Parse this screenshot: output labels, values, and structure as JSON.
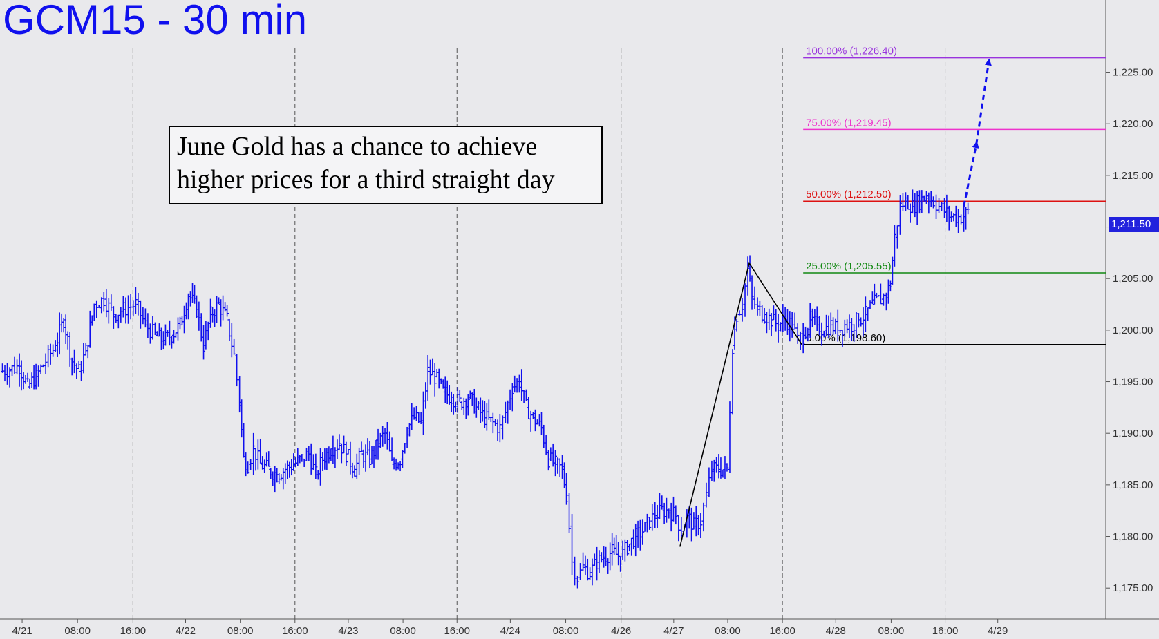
{
  "chart_title": "GCM15 - 30 min",
  "annotation": {
    "line1": "June Gold has a chance to achieve",
    "line2": "higher prices for a third straight day"
  },
  "last_price_label": "1,211.50",
  "colors": {
    "price_bars": "#1010ee",
    "fib_100": "#9933dd",
    "fib_75": "#ee33cc",
    "fib_50": "#dd1111",
    "fib_25": "#118811",
    "fib_0": "#000000",
    "projection": "#1010ee"
  },
  "chart_data": {
    "type": "ohlc",
    "title": "GCM15 - 30 min",
    "y_axis": {
      "side": "right",
      "range": [
        1172,
        1232
      ],
      "ticks": [
        1175,
        1180,
        1185,
        1190,
        1195,
        1200,
        1205,
        1210,
        1215,
        1220,
        1225
      ],
      "tick_labels": [
        "1,175.00",
        "1,180.00",
        "1,185.00",
        "1,190.00",
        "1,195.00",
        "1,200.00",
        "1,205.00",
        "1,210.00",
        "1,215.00",
        "1,220.00",
        "1,225.00"
      ]
    },
    "x_axis": {
      "range": [
        0,
        1597
      ],
      "ticks": [
        {
          "label": "4/21",
          "pos": 32
        },
        {
          "label": "08:00",
          "pos": 112
        },
        {
          "label": "16:00",
          "pos": 192
        },
        {
          "label": "4/22",
          "pos": 268
        },
        {
          "label": "08:00",
          "pos": 347
        },
        {
          "label": "16:00",
          "pos": 426
        },
        {
          "label": "4/23",
          "pos": 503
        },
        {
          "label": "08:00",
          "pos": 582
        },
        {
          "label": "16:00",
          "pos": 660
        },
        {
          "label": "4/24",
          "pos": 737
        },
        {
          "label": "08:00",
          "pos": 817
        },
        {
          "label": "4/26",
          "pos": 897
        },
        {
          "label": "4/27",
          "pos": 973
        },
        {
          "label": "08:00",
          "pos": 1051
        },
        {
          "label": "16:00",
          "pos": 1130
        },
        {
          "label": "4/28",
          "pos": 1207
        },
        {
          "label": "08:00",
          "pos": 1287
        },
        {
          "label": "16:00",
          "pos": 1365
        },
        {
          "label": "4/29",
          "pos": 1441
        }
      ],
      "session_dividers": [
        192,
        426,
        660,
        897,
        1130,
        1365
      ]
    },
    "price_path": [
      [
        0,
        1196.0
      ],
      [
        14,
        1196.2
      ],
      [
        28,
        1196.5
      ],
      [
        40,
        1194.5
      ],
      [
        52,
        1195.5
      ],
      [
        66,
        1197.0
      ],
      [
        80,
        1198.5
      ],
      [
        92,
        1201.0
      ],
      [
        104,
        1197.0
      ],
      [
        114,
        1196.0
      ],
      [
        124,
        1198.0
      ],
      [
        136,
        1202.5
      ],
      [
        150,
        1203.0
      ],
      [
        164,
        1201.5
      ],
      [
        178,
        1202.0
      ],
      [
        196,
        1202.5
      ],
      [
        210,
        1200.5
      ],
      [
        224,
        1199.5
      ],
      [
        236,
        1199.0
      ],
      [
        248,
        1199.5
      ],
      [
        260,
        1200.5
      ],
      [
        272,
        1203.5
      ],
      [
        284,
        1202.0
      ],
      [
        294,
        1198.5
      ],
      [
        304,
        1201.5
      ],
      [
        316,
        1202.5
      ],
      [
        328,
        1201.0
      ],
      [
        338,
        1197.5
      ],
      [
        346,
        1193.0
      ],
      [
        352,
        1187.5
      ],
      [
        358,
        1187.0
      ],
      [
        366,
        1188.5
      ],
      [
        376,
        1187.0
      ],
      [
        388,
        1186.5
      ],
      [
        400,
        1186.0
      ],
      [
        412,
        1186.5
      ],
      [
        424,
        1187.0
      ],
      [
        436,
        1187.5
      ],
      [
        446,
        1188.0
      ],
      [
        456,
        1186.0
      ],
      [
        466,
        1187.5
      ],
      [
        478,
        1188.5
      ],
      [
        490,
        1189.0
      ],
      [
        500,
        1188.0
      ],
      [
        512,
        1186.5
      ],
      [
        522,
        1188.0
      ],
      [
        534,
        1187.5
      ],
      [
        546,
        1189.0
      ],
      [
        556,
        1190.0
      ],
      [
        566,
        1187.0
      ],
      [
        578,
        1187.5
      ],
      [
        588,
        1190.5
      ],
      [
        598,
        1191.5
      ],
      [
        608,
        1191.0
      ],
      [
        618,
        1196.0
      ],
      [
        628,
        1195.5
      ],
      [
        640,
        1194.0
      ],
      [
        652,
        1193.5
      ],
      [
        664,
        1193.0
      ],
      [
        676,
        1193.5
      ],
      [
        688,
        1192.5
      ],
      [
        700,
        1191.5
      ],
      [
        712,
        1191.0
      ],
      [
        722,
        1190.5
      ],
      [
        730,
        1192.0
      ],
      [
        740,
        1194.5
      ],
      [
        750,
        1195.0
      ],
      [
        760,
        1192.5
      ],
      [
        770,
        1191.5
      ],
      [
        782,
        1190.5
      ],
      [
        792,
        1187.5
      ],
      [
        802,
        1187.0
      ],
      [
        812,
        1186.5
      ],
      [
        818,
        1184.0
      ],
      [
        822,
        1181.0
      ],
      [
        826,
        1177.5
      ],
      [
        834,
        1176.0
      ],
      [
        842,
        1177.0
      ],
      [
        852,
        1176.5
      ],
      [
        862,
        1177.5
      ],
      [
        872,
        1178.0
      ],
      [
        884,
        1178.5
      ],
      [
        896,
        1178.0
      ],
      [
        906,
        1179.0
      ],
      [
        918,
        1180.0
      ],
      [
        928,
        1180.5
      ],
      [
        938,
        1181.5
      ],
      [
        946,
        1182.0
      ],
      [
        956,
        1182.5
      ],
      [
        966,
        1182.5
      ],
      [
        976,
        1182.0
      ],
      [
        984,
        1180.5
      ],
      [
        992,
        1182.0
      ],
      [
        1002,
        1181.0
      ],
      [
        1012,
        1181.5
      ],
      [
        1020,
        1184.0
      ],
      [
        1028,
        1186.5
      ],
      [
        1038,
        1186.5
      ],
      [
        1050,
        1186.5
      ],
      [
        1058,
        1198.5
      ],
      [
        1064,
        1201.5
      ],
      [
        1072,
        1202.5
      ],
      [
        1080,
        1206.0
      ],
      [
        1086,
        1203.0
      ],
      [
        1094,
        1202.0
      ],
      [
        1104,
        1201.5
      ],
      [
        1114,
        1201.0
      ],
      [
        1124,
        1200.5
      ],
      [
        1134,
        1201.0
      ],
      [
        1144,
        1200.5
      ],
      [
        1152,
        1199.0
      ],
      [
        1160,
        1199.5
      ],
      [
        1170,
        1201.0
      ],
      [
        1180,
        1200.5
      ],
      [
        1190,
        1200.0
      ],
      [
        1200,
        1200.5
      ],
      [
        1210,
        1200.0
      ],
      [
        1220,
        1200.5
      ],
      [
        1230,
        1200.5
      ],
      [
        1240,
        1201.0
      ],
      [
        1250,
        1201.5
      ],
      [
        1260,
        1202.5
      ],
      [
        1272,
        1203.0
      ],
      [
        1280,
        1203.5
      ],
      [
        1286,
        1204.5
      ],
      [
        1292,
        1209.0
      ],
      [
        1300,
        1212.0
      ],
      [
        1308,
        1212.5
      ],
      [
        1318,
        1212.0
      ],
      [
        1328,
        1212.5
      ],
      [
        1338,
        1213.0
      ],
      [
        1348,
        1212.5
      ],
      [
        1356,
        1212.0
      ],
      [
        1364,
        1211.5
      ],
      [
        1374,
        1211.0
      ],
      [
        1384,
        1211.0
      ],
      [
        1392,
        1211.0
      ],
      [
        1398,
        1211.5
      ]
    ],
    "fib_levels": [
      {
        "label": "100.00% (1,226.40)",
        "value": 1226.4,
        "color": "#9933dd"
      },
      {
        "label": "75.00% (1,219.45)",
        "value": 1219.45,
        "color": "#ee33cc"
      },
      {
        "label": "50.00% (1,212.50)",
        "value": 1212.5,
        "color": "#dd1111"
      },
      {
        "label": "25.00% (1,205.55)",
        "value": 1205.55,
        "color": "#118811"
      },
      {
        "label": "0.00% (1,198.60)",
        "value": 1198.6,
        "color": "#000000"
      }
    ],
    "fib_start_x": 1160,
    "pattern_line": [
      [
        982,
        1179.0
      ],
      [
        1082,
        1206.5
      ],
      [
        1158,
        1198.6
      ]
    ],
    "projection_path": [
      [
        1392,
        1212.0
      ],
      [
        1410,
        1218.0
      ],
      [
        1428,
        1226.0
      ]
    ],
    "last_price": 1211.5
  }
}
